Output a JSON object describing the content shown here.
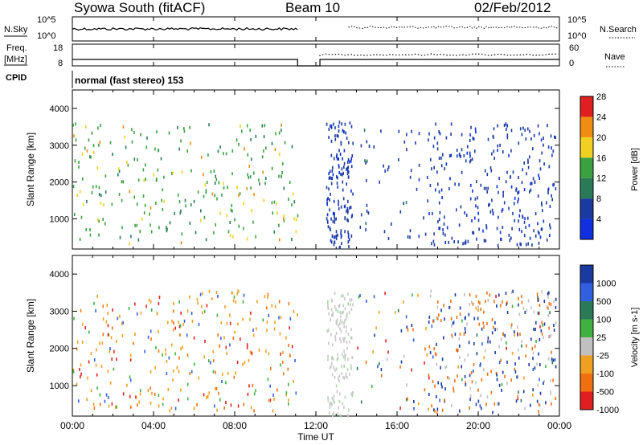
{
  "header": {
    "title": "Syowa South (fitACF)",
    "beam": "Beam 10",
    "date": "02/Feb/2012"
  },
  "status_panels": {
    "nsky_label": "N.Sky",
    "nsearch_label": "N.Search",
    "noise_ticks_left": [
      "10^5",
      "10^0"
    ],
    "noise_ticks_right": [
      "10^5",
      "10^0"
    ],
    "freq_label": "Freq.",
    "freq_unit": "[MHz]",
    "freq_ticks": [
      "18",
      "8"
    ],
    "nave_label": "Nave",
    "nave_ticks": [
      "60",
      "0"
    ],
    "cpid_label": "CPID",
    "cpid_text": "normal (fast stereo) 153"
  },
  "chart_data": [
    {
      "type": "heatmap",
      "name": "Power",
      "ylabel": "Slant Range [km]",
      "yticks": [
        "1000",
        "2000",
        "3000",
        "4000"
      ],
      "ylim": [
        180,
        4500
      ],
      "colorbar_label": "Power [dB]",
      "colorbar_ticks": [
        "4",
        "8",
        "12",
        "16",
        "20",
        "24",
        "28"
      ],
      "colors": [
        "#1030e0",
        "#1a3aa0",
        "#2a7a58",
        "#3aa040",
        "#f0d020",
        "#f08c10",
        "#e02020"
      ],
      "xlim_hours": [
        0,
        24
      ],
      "data_gaps_hours": [
        [
          11.1,
          12.2
        ]
      ],
      "dominant_color": {
        "0-11.1": "#3aa040",
        "12.2-24": "#1a3aa0"
      }
    },
    {
      "type": "heatmap",
      "name": "Velocity",
      "ylabel": "Slant Range [km]",
      "yticks": [
        "1000",
        "2000",
        "3000",
        "4000"
      ],
      "ylim": [
        180,
        4500
      ],
      "colorbar_label": "Velocity [m s-1]",
      "colorbar_ticks": [
        "1000",
        "500",
        "100",
        "25",
        "-25",
        "-100",
        "-500",
        "-1000"
      ],
      "colors": [
        "#1a3aa0",
        "#3060e0",
        "#2a7a58",
        "#40b040",
        "#c0c0c0",
        "#f0a020",
        "#f07010",
        "#e02020"
      ],
      "xlim_hours": [
        0,
        24
      ],
      "data_gaps_hours": [
        [
          11.1,
          12.2
        ]
      ]
    }
  ],
  "xaxis": {
    "label": "Time UT",
    "ticks": [
      "00:00",
      "04:00",
      "08:00",
      "12:00",
      "16:00",
      "20:00",
      "00:00"
    ]
  }
}
